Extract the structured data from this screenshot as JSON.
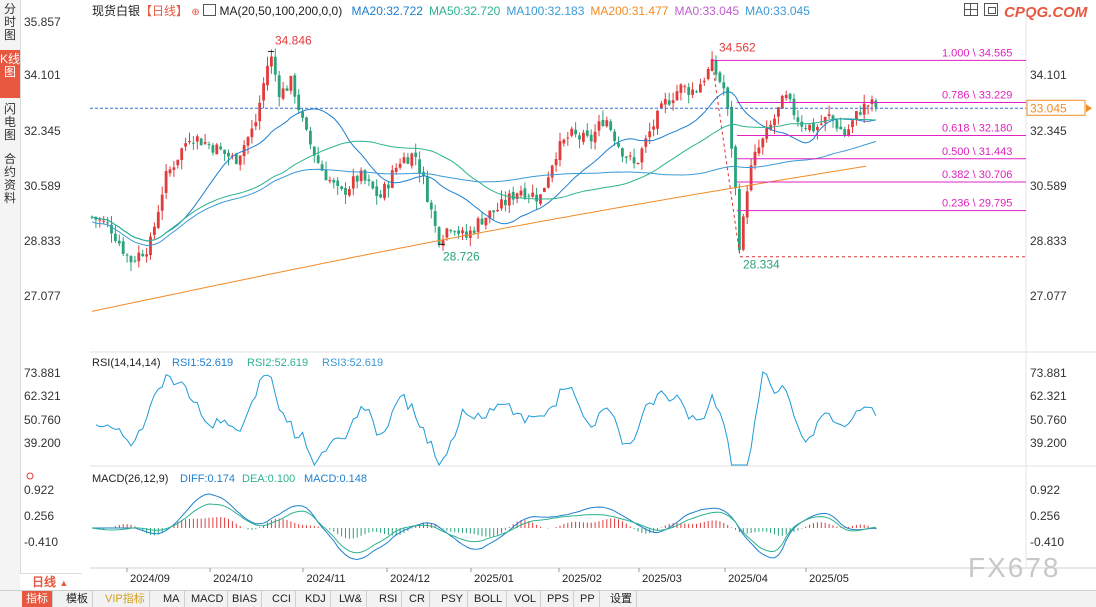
{
  "sidebar": {
    "tabs": [
      {
        "label": "分时图",
        "active": false
      },
      {
        "label": "K线图",
        "active": true
      },
      {
        "label": "闪电图",
        "active": false
      },
      {
        "label": "合约资料",
        "active": false
      }
    ]
  },
  "header": {
    "instrument": "现货白银",
    "period_tag": "【日线】",
    "ma_label": "MA(20,50,100,200,0,0)",
    "ma_values": [
      {
        "label": "MA20:32.722",
        "color": "#1e7fd0"
      },
      {
        "label": "MA50:32.720",
        "color": "#2bb38f"
      },
      {
        "label": "MA100:32.183",
        "color": "#3a9ad8"
      },
      {
        "label": "MA200:31.477",
        "color": "#f28c28"
      },
      {
        "label": "MA0:33.045",
        "color": "#c05fd0"
      },
      {
        "label": "MA0:33.045",
        "color": "#3a9ad8"
      }
    ],
    "brand": "CPQG.COM",
    "brand_color": "#e8573f"
  },
  "price_panel": {
    "y_ticks": [
      "35.857",
      "34.101",
      "32.345",
      "30.589",
      "28.833",
      "27.077"
    ],
    "right_ticks": [
      "34.101",
      "32.345",
      "30.589",
      "28.833",
      "27.077"
    ],
    "current_price": "33.045",
    "high_labels": [
      "34.846",
      "34.562"
    ],
    "low_labels": [
      "28.726",
      "28.334"
    ],
    "fib_levels": [
      "1.000 \\ 34.565",
      "0.786 \\ 33.229",
      "0.618 \\ 32.180",
      "0.500 \\ 31.443",
      "0.382 \\ 30.706",
      "0.236 \\ 29.795"
    ],
    "fib_color": "#e020c0",
    "up_color": "#e23b3b",
    "down_color": "#2aa37a"
  },
  "rsi_panel": {
    "title": "RSI(14,14,14)",
    "values": [
      "RSI1:52.619",
      "RSI2:52.619",
      "RSI3:52.619"
    ],
    "ticks": [
      "73.881",
      "62.321",
      "50.760",
      "39.200"
    ],
    "right_ticks": [
      "73.881",
      "62.321",
      "50.760",
      "39.200"
    ]
  },
  "macd_panel": {
    "title": "MACD(26,12,9)",
    "values": [
      {
        "label": "DIFF:0.174",
        "color": "#1e7fd0"
      },
      {
        "label": "DEA:0.100",
        "color": "#2bb38f"
      },
      {
        "label": "MACD:0.148",
        "color": "#1e7fd0"
      }
    ],
    "ticks": [
      "0.922",
      "0.256",
      "-0.410"
    ],
    "right_ticks": [
      "0.922",
      "0.256",
      "-0.410"
    ]
  },
  "x_axis": {
    "labels": [
      "2024/09",
      "2024/10",
      "2024/11",
      "2024/12",
      "2025/01",
      "2025/02",
      "2025/03",
      "2025/04",
      "2025/05"
    ]
  },
  "period_button": "日线",
  "watermark": "FX678",
  "toolbar": {
    "items": [
      {
        "label": "指标",
        "active": true
      },
      {
        "label": "模板",
        "active": false
      },
      {
        "label": "VIP指标",
        "active": false,
        "vip": true
      },
      {
        "label": "MA",
        "active": false
      },
      {
        "label": "MACD",
        "active": false
      },
      {
        "label": "BIAS",
        "active": false
      },
      {
        "label": "CCI",
        "active": false
      },
      {
        "label": "KDJ",
        "active": false
      },
      {
        "label": "LW&",
        "active": false
      },
      {
        "label": "RSI",
        "active": false
      },
      {
        "label": "CR",
        "active": false
      },
      {
        "label": "PSY",
        "active": false
      },
      {
        "label": "BOLL",
        "active": false
      },
      {
        "label": "VOL",
        "active": false
      },
      {
        "label": "PPS",
        "active": false
      },
      {
        "label": "PP",
        "active": false
      },
      {
        "label": "设置",
        "active": false
      }
    ]
  }
}
